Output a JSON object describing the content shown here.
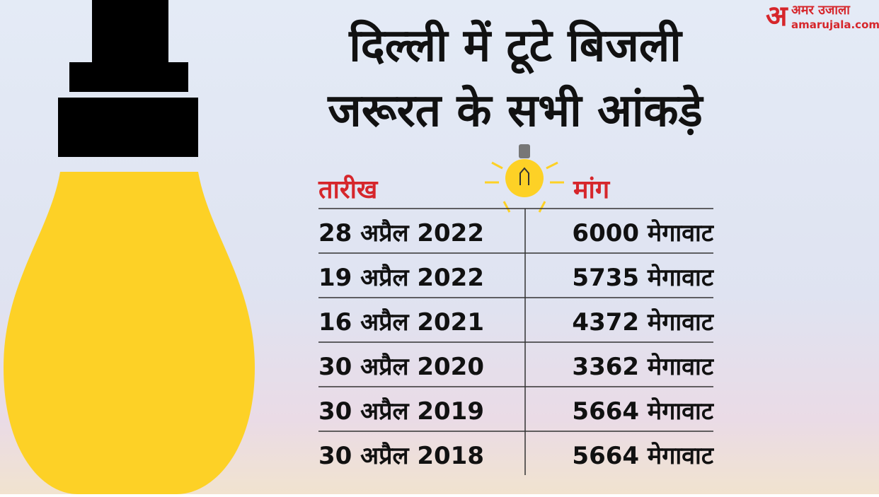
{
  "header": {
    "title_lines": [
      "दिल्ली में टूटे बिजली",
      "जरूरत के सभी आंकड़े"
    ]
  },
  "logo": {
    "mark": "अ",
    "name": "अमर उजाला",
    "site": "amarujala.com"
  },
  "table": {
    "columns": [
      "तारीख",
      "मांग"
    ],
    "rows": [
      [
        "28 अप्रैल 2022",
        "6000 मेगावाट"
      ],
      [
        "19 अप्रैल 2022",
        "5735 मेगावाट"
      ],
      [
        "16 अप्रैल 2021",
        "4372 मेगावाट"
      ],
      [
        "30 अप्रैल 2020",
        "3362 मेगावाट"
      ],
      [
        "30 अप्रैल 2019",
        "5664 मेगावाट"
      ],
      [
        "30 अप्रैल 2018",
        "5664 मेगावाट"
      ]
    ]
  }
}
